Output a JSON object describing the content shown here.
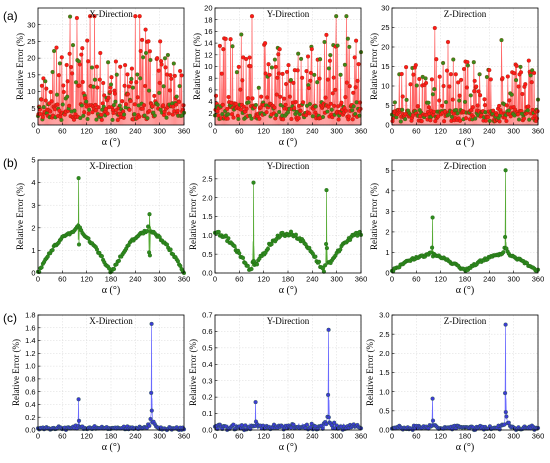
{
  "figure": {
    "rows": [
      {
        "label": "(a)",
        "color": "#ff1a1a",
        "marker": "#3a8a1a",
        "line": "#ff6666",
        "panels": [
          {
            "title": "X-Direction",
            "ylim": [
              0,
              35
            ],
            "yticks": [
              0,
              5,
              10,
              15,
              20,
              25,
              30
            ],
            "style": "noisy",
            "seed": 11,
            "base": 5,
            "spread": 22,
            "envelope": "twin"
          },
          {
            "title": "Y-Direction",
            "ylim": [
              0,
              20
            ],
            "yticks": [
              0,
              2,
              4,
              6,
              8,
              10,
              12,
              14,
              16,
              18,
              20
            ],
            "style": "noisy",
            "seed": 23,
            "base": 3,
            "spread": 13,
            "envelope": "flat"
          },
          {
            "title": "Z-Direction",
            "ylim": [
              0,
              30
            ],
            "yticks": [
              0,
              5,
              10,
              15,
              20,
              25,
              30
            ],
            "style": "noisy",
            "seed": 37,
            "base": 3,
            "spread": 14,
            "envelope": "flat"
          }
        ]
      },
      {
        "label": "(b)",
        "color": "#1a7a1a",
        "marker": "#2e8b1e",
        "line": "#55aa33",
        "panels": [
          {
            "title": "X-Direction",
            "ylim": [
              0,
              5
            ],
            "yticks": [
              0,
              1,
              2,
              3,
              4,
              5
            ],
            "style": "arch",
            "amp": 1.8,
            "spikes": [
              [
                100,
                4.2
              ],
              [
                275,
                2.6
              ]
            ]
          },
          {
            "title": "Y-Direction",
            "ylim": [
              0,
              3
            ],
            "yticks": [
              0.0,
              0.5,
              1.0,
              1.5,
              2.0,
              2.5
            ],
            "style": "cos",
            "amp": 1.05,
            "spikes": [
              [
                95,
                2.4
              ],
              [
                275,
                2.2
              ]
            ]
          },
          {
            "title": "Z-Direction",
            "ylim": [
              0,
              5.5
            ],
            "yticks": [
              0,
              1,
              2,
              3,
              4,
              5
            ],
            "style": "vee",
            "amp": 0.75,
            "spikes": [
              [
                100,
                2.7
              ],
              [
                280,
                5.0
              ]
            ]
          }
        ]
      },
      {
        "label": "(c)",
        "color": "#1a1aff",
        "marker": "#3c3cd2",
        "line": "#6a6aff",
        "panels": [
          {
            "title": "X-Direction",
            "ylim": [
              0,
              1.8
            ],
            "yticks": [
              0.0,
              0.2,
              0.4,
              0.6,
              0.8,
              1.0,
              1.2,
              1.4,
              1.6,
              1.8
            ],
            "style": "flat",
            "amp": 0.03,
            "spikes": [
              [
                100,
                0.48
              ],
              [
                280,
                1.66
              ]
            ]
          },
          {
            "title": "Y-Direction",
            "ylim": [
              0,
              0.7
            ],
            "yticks": [
              0.0,
              0.1,
              0.2,
              0.3,
              0.4,
              0.5,
              0.6,
              0.7
            ],
            "style": "flat",
            "amp": 0.02,
            "spikes": [
              [
                100,
                0.17
              ],
              [
                280,
                0.61
              ]
            ]
          },
          {
            "title": "Z-Direction",
            "ylim": [
              0,
              3.0
            ],
            "yticks": [
              0.0,
              0.5,
              1.0,
              1.5,
              2.0,
              2.5,
              3.0
            ],
            "style": "flat",
            "amp": 0.06,
            "spikes": [
              [
                100,
                0.82
              ],
              [
                280,
                2.75
              ]
            ]
          }
        ]
      }
    ],
    "xlabel": "α (°)",
    "ylabel": "Relative Error (%)",
    "xticks": [
      0,
      60,
      120,
      180,
      240,
      300,
      360
    ]
  },
  "chart_data": [
    {
      "type": "scatter",
      "title": "X-Direction",
      "xlabel": "α (°)",
      "ylabel": "Relative Error (%)",
      "xlim": [
        0,
        360
      ],
      "ylim": [
        0,
        35
      ],
      "x": [
        0,
        30,
        60,
        90,
        120,
        150,
        180,
        210,
        240,
        270,
        300,
        330,
        360
      ],
      "y": [
        3,
        15,
        6,
        30,
        10,
        6,
        18,
        8,
        28,
        31,
        12,
        6,
        4
      ]
    },
    {
      "type": "scatter",
      "title": "Y-Direction",
      "xlabel": "α (°)",
      "ylabel": "Relative Error (%)",
      "xlim": [
        0,
        360
      ],
      "ylim": [
        0,
        20
      ],
      "x": [
        0,
        30,
        60,
        90,
        120,
        150,
        180,
        210,
        240,
        270,
        300,
        330,
        360
      ],
      "y": [
        18,
        4,
        10,
        6,
        12,
        7,
        16,
        5,
        11,
        14,
        6,
        13,
        15
      ]
    },
    {
      "type": "scatter",
      "title": "Z-Direction",
      "xlabel": "α (°)",
      "ylabel": "Relative Error (%)",
      "xlim": [
        0,
        360
      ],
      "ylim": [
        0,
        30
      ],
      "x": [
        0,
        30,
        60,
        90,
        120,
        150,
        180,
        210,
        240,
        270,
        300,
        330,
        360
      ],
      "y": [
        8,
        17,
        6,
        13,
        9,
        12,
        5,
        14,
        10,
        26,
        8,
        11,
        6
      ]
    },
    {
      "type": "scatter",
      "title": "X-Direction",
      "xlabel": "α (°)",
      "ylabel": "Relative Error (%)",
      "xlim": [
        0,
        360
      ],
      "ylim": [
        0,
        5
      ],
      "x": [
        0,
        30,
        60,
        90,
        100,
        120,
        150,
        180,
        210,
        240,
        270,
        275,
        300,
        330,
        360
      ],
      "y": [
        0.1,
        0.9,
        1.5,
        1.8,
        4.2,
        1.4,
        0.6,
        0.1,
        0.6,
        1.4,
        1.8,
        2.6,
        1.5,
        0.8,
        0.1
      ]
    },
    {
      "type": "scatter",
      "title": "Y-Direction",
      "xlabel": "α (°)",
      "ylabel": "Relative Error (%)",
      "xlim": [
        0,
        360
      ],
      "ylim": [
        0,
        3
      ],
      "x": [
        0,
        45,
        90,
        95,
        135,
        180,
        225,
        270,
        275,
        315,
        360
      ],
      "y": [
        1.05,
        0.7,
        0.05,
        2.4,
        0.7,
        1.05,
        0.7,
        0.05,
        2.2,
        0.7,
        1.05
      ]
    },
    {
      "type": "scatter",
      "title": "Z-Direction",
      "xlabel": "α (°)",
      "ylabel": "Relative Error (%)",
      "xlim": [
        0,
        360
      ],
      "ylim": [
        0,
        5.5
      ],
      "x": [
        0,
        45,
        90,
        100,
        135,
        180,
        225,
        270,
        280,
        315,
        360
      ],
      "y": [
        0.2,
        0.4,
        0.7,
        2.7,
        0.4,
        0.1,
        0.4,
        0.7,
        5.0,
        0.4,
        0.2
      ]
    },
    {
      "type": "scatter",
      "title": "X-Direction",
      "xlabel": "α (°)",
      "ylabel": "Relative Error (%)",
      "xlim": [
        0,
        360
      ],
      "ylim": [
        0,
        1.8
      ],
      "x": [
        0,
        90,
        100,
        180,
        270,
        280,
        360
      ],
      "y": [
        0.02,
        0.05,
        0.48,
        0.02,
        0.1,
        1.66,
        0.02
      ]
    },
    {
      "type": "scatter",
      "title": "Y-Direction",
      "xlabel": "α (°)",
      "ylabel": "Relative Error (%)",
      "xlim": [
        0,
        360
      ],
      "ylim": [
        0,
        0.7
      ],
      "x": [
        0,
        90,
        100,
        180,
        270,
        280,
        360
      ],
      "y": [
        0.01,
        0.05,
        0.17,
        0.01,
        0.1,
        0.61,
        0.01
      ]
    },
    {
      "type": "scatter",
      "title": "Z-Direction",
      "xlabel": "α (°)",
      "ylabel": "Relative Error (%)",
      "xlim": [
        0,
        360
      ],
      "ylim": [
        0,
        3.0
      ],
      "x": [
        0,
        90,
        100,
        180,
        270,
        280,
        360
      ],
      "y": [
        0.03,
        0.2,
        0.82,
        0.03,
        0.3,
        2.75,
        0.03
      ]
    }
  ]
}
